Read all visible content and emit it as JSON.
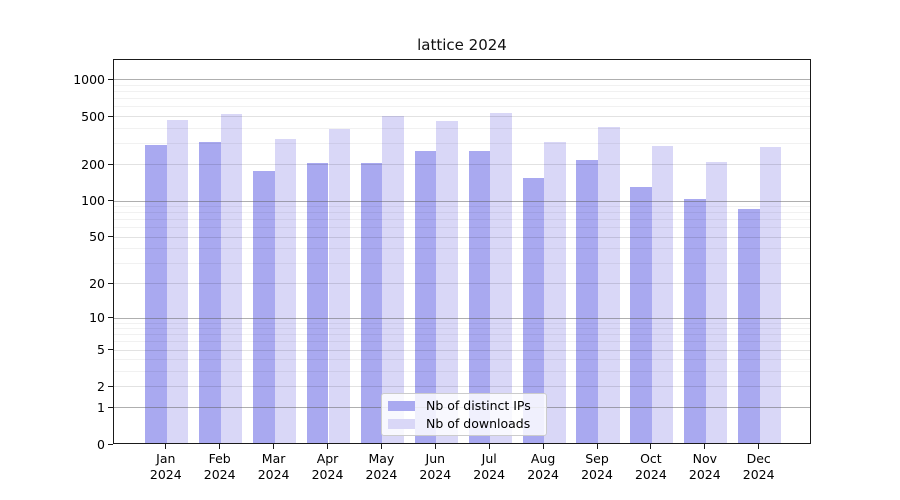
{
  "chart_data": {
    "type": "bar",
    "title": "lattice 2024",
    "categories": [
      "Jan",
      "Feb",
      "Mar",
      "Apr",
      "May",
      "Jun",
      "Jul",
      "Aug",
      "Sep",
      "Oct",
      "Nov",
      "Dec"
    ],
    "year_label": "2024",
    "series": [
      {
        "name": "Nb of distinct IPs",
        "color": "#a9a9f0",
        "values": [
          283,
          300,
          173,
          200,
          202,
          251,
          254,
          151,
          214,
          126,
          101,
          83
        ]
      },
      {
        "name": "Nb of downloads",
        "color": "#d9d7f7",
        "values": [
          456,
          508,
          316,
          387,
          492,
          446,
          521,
          297,
          395,
          279,
          206,
          274
        ]
      }
    ],
    "xlabel": "",
    "ylabel": "",
    "yscale": "log1p",
    "yticks": [
      0,
      1,
      2,
      5,
      10,
      20,
      50,
      100,
      200,
      500,
      1000
    ],
    "minor_gridlines": [
      3,
      4,
      6,
      7,
      8,
      9,
      30,
      40,
      60,
      70,
      80,
      90,
      300,
      400,
      600,
      700,
      800,
      900
    ],
    "ylim": [
      0,
      1475
    ],
    "grid": true,
    "legend_position": "bottom-center",
    "colors": {
      "background": "#ffffff",
      "axis": "#1a1a1a",
      "grid_major": "#9a9a9a",
      "grid_mid": "#dcdcdc",
      "grid_minor": "#ececec",
      "legend_border": "#cccccc"
    }
  }
}
